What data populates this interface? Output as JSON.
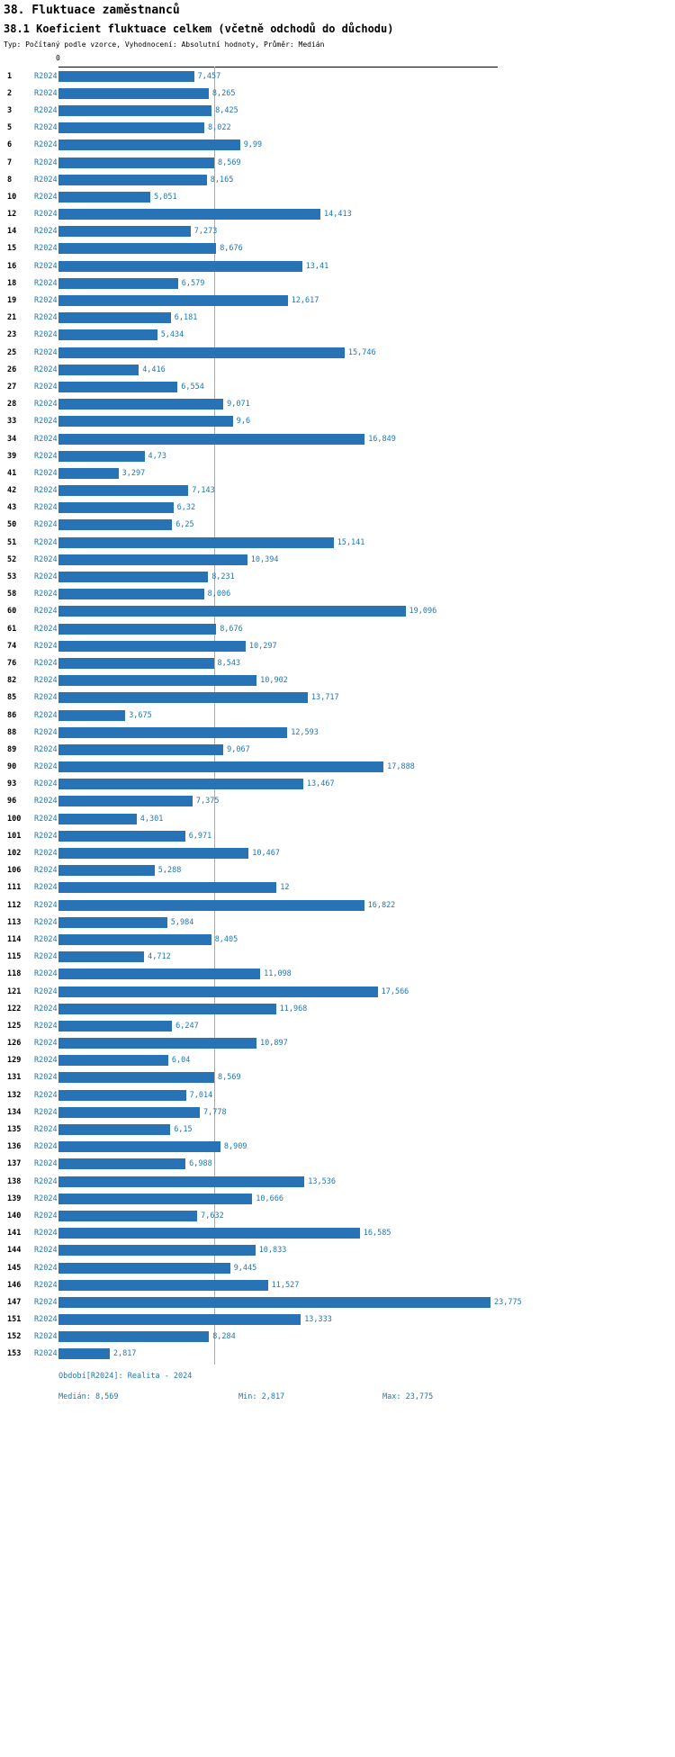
{
  "header": {
    "title": "38. Fluktuace zaměstnanců",
    "subtitle": "38.1 Koeficient fluktuace celkem (včetně odchodů do důchodu)",
    "meta": "Typ: Počítaný podle vzorce, Vyhodnocení: Absolutní hodnoty, Průměr: Medián"
  },
  "colors": {
    "bar": "#2873b5",
    "accent_text": "#1f77b4",
    "median_line": "#aaaaaa",
    "axis": "#000000"
  },
  "chart_data": {
    "type": "bar",
    "orientation": "horizontal",
    "title": "38.1 Koeficient fluktuace celkem (včetně odchodů do důchodu)",
    "series_label": "R2024",
    "axis_zero_label": "0",
    "xlim": [
      0,
      23.775
    ],
    "median_value": 8.569,
    "min_value": 2.817,
    "max_value": 23.775,
    "rows": [
      {
        "id": "1",
        "value": 7.457,
        "display": "7,457"
      },
      {
        "id": "2",
        "value": 8.265,
        "display": "8,265"
      },
      {
        "id": "3",
        "value": 8.425,
        "display": "8,425"
      },
      {
        "id": "5",
        "value": 8.022,
        "display": "8,022"
      },
      {
        "id": "6",
        "value": 9.99,
        "display": "9,99"
      },
      {
        "id": "7",
        "value": 8.569,
        "display": "8,569"
      },
      {
        "id": "8",
        "value": 8.165,
        "display": "8,165"
      },
      {
        "id": "10",
        "value": 5.051,
        "display": "5,051"
      },
      {
        "id": "12",
        "value": 14.413,
        "display": "14,413"
      },
      {
        "id": "14",
        "value": 7.273,
        "display": "7,273"
      },
      {
        "id": "15",
        "value": 8.676,
        "display": "8,676"
      },
      {
        "id": "16",
        "value": 13.41,
        "display": "13,41"
      },
      {
        "id": "18",
        "value": 6.579,
        "display": "6,579"
      },
      {
        "id": "19",
        "value": 12.617,
        "display": "12,617"
      },
      {
        "id": "21",
        "value": 6.181,
        "display": "6,181"
      },
      {
        "id": "23",
        "value": 5.434,
        "display": "5,434"
      },
      {
        "id": "25",
        "value": 15.746,
        "display": "15,746"
      },
      {
        "id": "26",
        "value": 4.416,
        "display": "4,416"
      },
      {
        "id": "27",
        "value": 6.554,
        "display": "6,554"
      },
      {
        "id": "28",
        "value": 9.071,
        "display": "9,071"
      },
      {
        "id": "33",
        "value": 9.6,
        "display": "9,6"
      },
      {
        "id": "34",
        "value": 16.849,
        "display": "16,849"
      },
      {
        "id": "39",
        "value": 4.73,
        "display": "4,73"
      },
      {
        "id": "41",
        "value": 3.297,
        "display": "3,297"
      },
      {
        "id": "42",
        "value": 7.143,
        "display": "7,143"
      },
      {
        "id": "43",
        "value": 6.32,
        "display": "6,32"
      },
      {
        "id": "50",
        "value": 6.25,
        "display": "6,25"
      },
      {
        "id": "51",
        "value": 15.141,
        "display": "15,141"
      },
      {
        "id": "52",
        "value": 10.394,
        "display": "10,394"
      },
      {
        "id": "53",
        "value": 8.231,
        "display": "8,231"
      },
      {
        "id": "58",
        "value": 8.006,
        "display": "8,006"
      },
      {
        "id": "60",
        "value": 19.096,
        "display": "19,096"
      },
      {
        "id": "61",
        "value": 8.676,
        "display": "8,676"
      },
      {
        "id": "74",
        "value": 10.297,
        "display": "10,297"
      },
      {
        "id": "76",
        "value": 8.543,
        "display": "8,543"
      },
      {
        "id": "82",
        "value": 10.902,
        "display": "10,902"
      },
      {
        "id": "85",
        "value": 13.717,
        "display": "13,717"
      },
      {
        "id": "86",
        "value": 3.675,
        "display": "3,675"
      },
      {
        "id": "88",
        "value": 12.593,
        "display": "12,593"
      },
      {
        "id": "89",
        "value": 9.067,
        "display": "9,067"
      },
      {
        "id": "90",
        "value": 17.888,
        "display": "17,888"
      },
      {
        "id": "93",
        "value": 13.467,
        "display": "13,467"
      },
      {
        "id": "96",
        "value": 7.375,
        "display": "7,375"
      },
      {
        "id": "100",
        "value": 4.301,
        "display": "4,301"
      },
      {
        "id": "101",
        "value": 6.971,
        "display": "6,971"
      },
      {
        "id": "102",
        "value": 10.467,
        "display": "10,467"
      },
      {
        "id": "106",
        "value": 5.288,
        "display": "5,288"
      },
      {
        "id": "111",
        "value": 12,
        "display": "12"
      },
      {
        "id": "112",
        "value": 16.822,
        "display": "16,822"
      },
      {
        "id": "113",
        "value": 5.984,
        "display": "5,984"
      },
      {
        "id": "114",
        "value": 8.405,
        "display": "8,405"
      },
      {
        "id": "115",
        "value": 4.712,
        "display": "4,712"
      },
      {
        "id": "118",
        "value": 11.098,
        "display": "11,098"
      },
      {
        "id": "121",
        "value": 17.566,
        "display": "17,566"
      },
      {
        "id": "122",
        "value": 11.968,
        "display": "11,968"
      },
      {
        "id": "125",
        "value": 6.247,
        "display": "6,247"
      },
      {
        "id": "126",
        "value": 10.897,
        "display": "10,897"
      },
      {
        "id": "129",
        "value": 6.04,
        "display": "6,04"
      },
      {
        "id": "131",
        "value": 8.569,
        "display": "8,569"
      },
      {
        "id": "132",
        "value": 7.014,
        "display": "7,014"
      },
      {
        "id": "134",
        "value": 7.778,
        "display": "7,778"
      },
      {
        "id": "135",
        "value": 6.15,
        "display": "6,15"
      },
      {
        "id": "136",
        "value": 8.909,
        "display": "8,909"
      },
      {
        "id": "137",
        "value": 6.988,
        "display": "6,988"
      },
      {
        "id": "138",
        "value": 13.536,
        "display": "13,536"
      },
      {
        "id": "139",
        "value": 10.666,
        "display": "10,666"
      },
      {
        "id": "140",
        "value": 7.632,
        "display": "7,632"
      },
      {
        "id": "141",
        "value": 16.585,
        "display": "16,585"
      },
      {
        "id": "144",
        "value": 10.833,
        "display": "10,833"
      },
      {
        "id": "145",
        "value": 9.445,
        "display": "9,445"
      },
      {
        "id": "146",
        "value": 11.527,
        "display": "11,527"
      },
      {
        "id": "147",
        "value": 23.775,
        "display": "23,775"
      },
      {
        "id": "151",
        "value": 13.333,
        "display": "13,333"
      },
      {
        "id": "152",
        "value": 8.284,
        "display": "8,284"
      },
      {
        "id": "153",
        "value": 2.817,
        "display": "2,817"
      }
    ]
  },
  "footer": {
    "period": "Období[R2024]: Realita - 2024",
    "median": "Medián: 8,569",
    "min": "Min: 2,817",
    "max": "Max: 23,775"
  }
}
